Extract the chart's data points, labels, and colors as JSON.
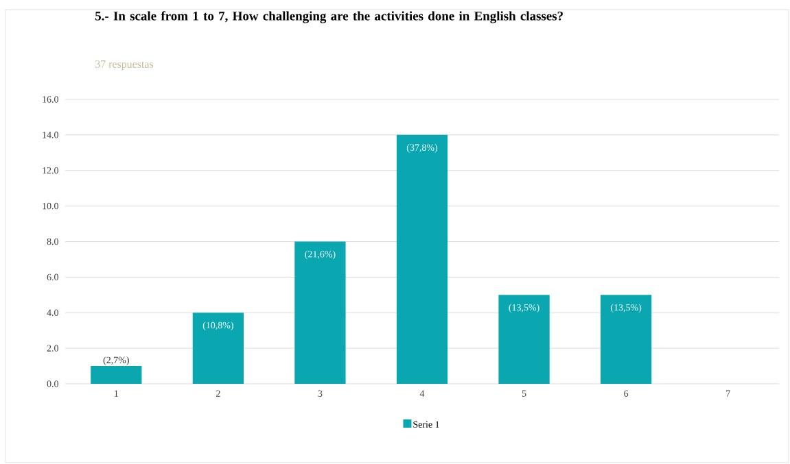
{
  "chart_data": {
    "type": "bar",
    "title": "5.- In scale from 1 to 7, How challenging are the activities done in English classes?",
    "subtitle": "37 respuestas",
    "categories": [
      "1",
      "2",
      "3",
      "4",
      "5",
      "6",
      "7"
    ],
    "series": [
      {
        "name": "Serie 1",
        "color": "#0ba7b0",
        "values": [
          1,
          4,
          8,
          14,
          5,
          5,
          0
        ]
      }
    ],
    "annotations": [
      {
        "text": "(2,7%)",
        "x": "1",
        "y": 1
      },
      {
        "text": "(10,8%)",
        "x": "2",
        "y": 4
      },
      {
        "text": "(21,6%)",
        "x": "3",
        "y": 8
      },
      {
        "text": "(37,8%)",
        "x": "4",
        "y": 14
      },
      {
        "text": "(13,5%)",
        "x": "5",
        "y": 5
      },
      {
        "text": "(13,5%)",
        "x": "6",
        "y": 5
      }
    ],
    "ylim": [
      0,
      16
    ],
    "yticks": [
      {
        "value": 0,
        "label": "0.0"
      },
      {
        "value": 2,
        "label": "2.0"
      },
      {
        "value": 4,
        "label": "4.0"
      },
      {
        "value": 6,
        "label": "6.0"
      },
      {
        "value": 8,
        "label": "8.0"
      },
      {
        "value": 10,
        "label": "10.0"
      },
      {
        "value": 12,
        "label": "12.0"
      },
      {
        "value": 14,
        "label": "14.0"
      },
      {
        "value": 16,
        "label": "16.0"
      }
    ],
    "grid": "y",
    "legend": "bottom"
  }
}
